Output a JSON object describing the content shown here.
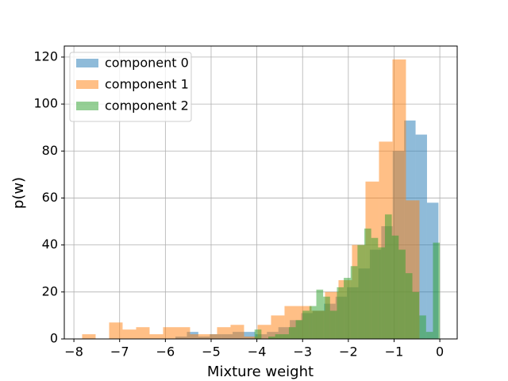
{
  "chart_data": {
    "type": "histogram",
    "xlabel": "Mixture weight",
    "ylabel": "p(w)",
    "xlim": [
      -8.21,
      0.38
    ],
    "ylim": [
      0,
      124.7
    ],
    "xticks": [
      {
        "value": -8,
        "label": "−8"
      },
      {
        "value": -7,
        "label": "−7"
      },
      {
        "value": -6,
        "label": "−6"
      },
      {
        "value": -5,
        "label": "−5"
      },
      {
        "value": -4,
        "label": "−4"
      },
      {
        "value": -3,
        "label": "−3"
      },
      {
        "value": -2,
        "label": "−2"
      },
      {
        "value": -1,
        "label": "−1"
      },
      0
    ],
    "yticks": [
      0,
      20,
      40,
      60,
      80,
      100,
      120
    ],
    "grid": true,
    "legend": "upper left",
    "alpha": 0.5,
    "series": [
      {
        "name": "component 0",
        "color": "#1f77b4",
        "bins": [
          -7.53,
          -7.28,
          -7.03,
          -6.78,
          -6.53,
          -6.28,
          -6.03,
          -5.78,
          -5.53,
          -5.28,
          -5.03,
          -4.78,
          -4.53,
          -4.28,
          -4.03,
          -3.78,
          -3.53,
          -3.28,
          -3.03,
          -2.78,
          -2.53,
          -2.28,
          -2.03,
          -1.78,
          -1.53,
          -1.28,
          -1.03,
          -0.78,
          -0.53,
          -0.28,
          -0.03
        ],
        "values": [
          0,
          0,
          0,
          0,
          0,
          0,
          0,
          1,
          3,
          1,
          2,
          2,
          3,
          3,
          2,
          3,
          5,
          8,
          11,
          12,
          15,
          18,
          22,
          30,
          38,
          48,
          80,
          93,
          87,
          58
        ]
      },
      {
        "name": "component 1",
        "color": "#ff7f0e",
        "bins": [
          -7.82,
          -7.525,
          -7.23,
          -6.935,
          -6.64,
          -6.345,
          -6.05,
          -5.755,
          -5.46,
          -5.165,
          -4.87,
          -4.575,
          -4.28,
          -3.985,
          -3.69,
          -3.395,
          -3.1,
          -2.805,
          -2.51,
          -2.215,
          -1.92,
          -1.625,
          -1.33,
          -1.035,
          -0.74,
          -0.445
        ],
        "values": [
          2,
          0,
          7,
          4,
          5,
          2,
          5,
          5,
          2,
          2,
          5,
          6,
          1,
          6,
          10,
          14,
          14,
          12,
          20,
          25,
          40,
          67,
          84,
          119,
          59
        ]
      },
      {
        "name": "component 2",
        "color": "#2ca02c",
        "bins": [
          -4.05,
          -3.9,
          -3.75,
          -3.6,
          -3.45,
          -3.3,
          -3.15,
          -3.0,
          -2.85,
          -2.7,
          -2.55,
          -2.4,
          -2.25,
          -2.1,
          -1.95,
          -1.8,
          -1.65,
          -1.5,
          -1.35,
          -1.2,
          -1.05,
          -0.9,
          -0.75,
          -0.6,
          -0.45,
          -0.3,
          -0.15,
          0
        ],
        "values": [
          4,
          0,
          1,
          2,
          2,
          5,
          8,
          12,
          14,
          21,
          18,
          12,
          22,
          26,
          31,
          40,
          47,
          43,
          39,
          53,
          44,
          38,
          28,
          20,
          10,
          3,
          41
        ]
      }
    ]
  }
}
